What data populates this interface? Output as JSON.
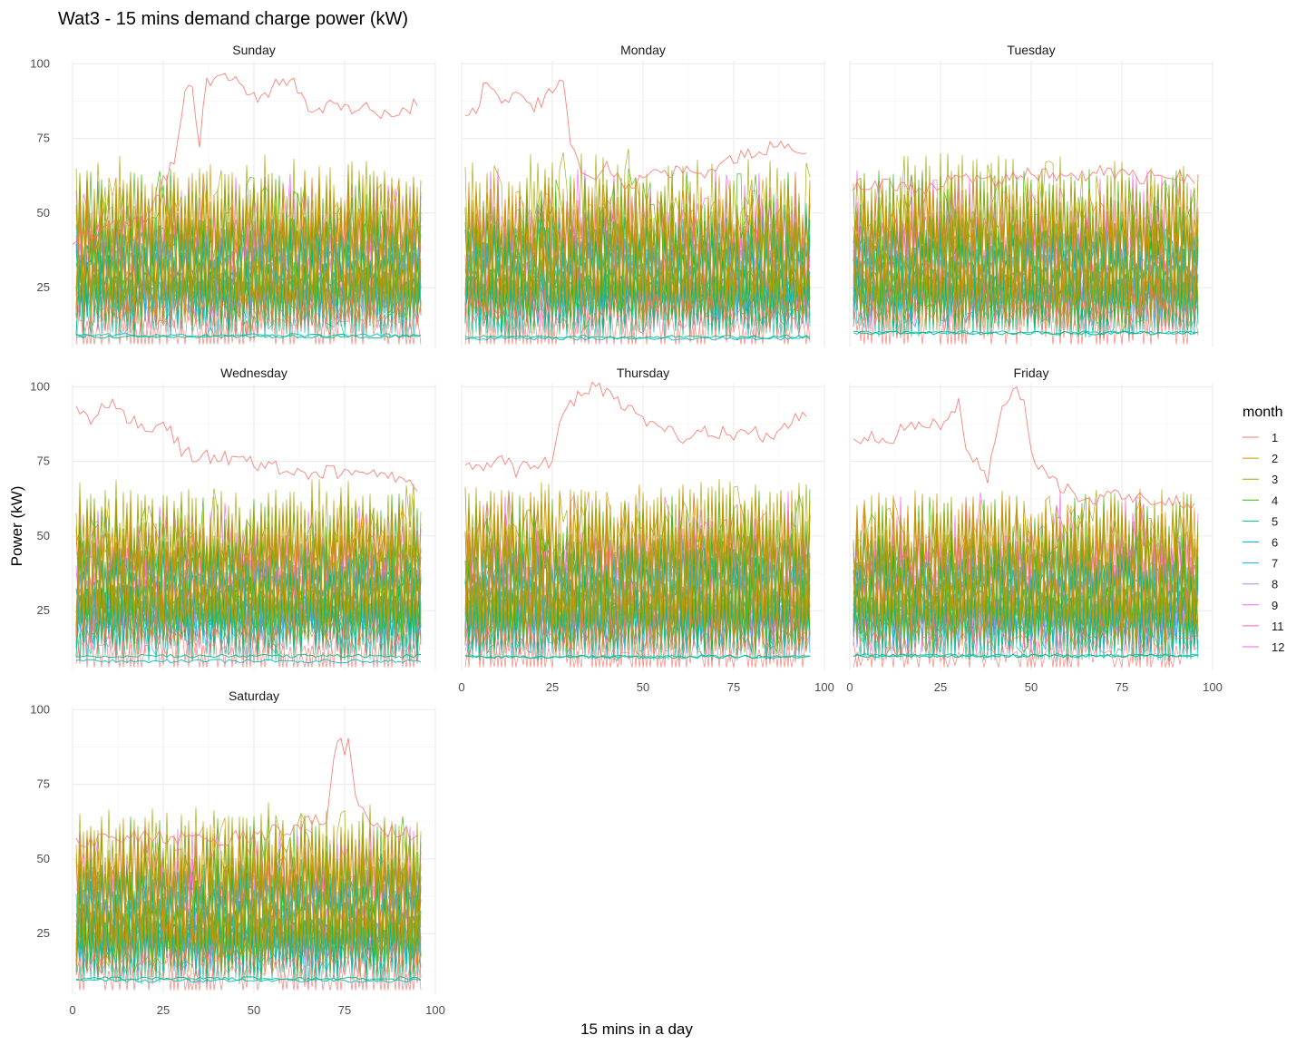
{
  "chart_data": {
    "type": "line",
    "title": "Wat3 - 15 mins demand charge power (kW)",
    "xlabel": "15 mins in a day",
    "ylabel": "Power (kW)",
    "xlim": [
      0,
      100
    ],
    "ylim": [
      5,
      101
    ],
    "x_ticks": [
      "0",
      "25",
      "50",
      "75",
      "100"
    ],
    "y_ticks": [
      "25",
      "50",
      "75",
      "100"
    ],
    "grid": true,
    "legend_position": "right",
    "legend": {
      "title": "month",
      "entries": [
        {
          "label": "1",
          "color": "#F8766D"
        },
        {
          "label": "2",
          "color": "#D89000"
        },
        {
          "label": "3",
          "color": "#A3A500"
        },
        {
          "label": "4",
          "color": "#39B600"
        },
        {
          "label": "5",
          "color": "#00BF7D"
        },
        {
          "label": "6",
          "color": "#00BFC4"
        },
        {
          "label": "7",
          "color": "#00B0F6"
        },
        {
          "label": "8",
          "color": "#9590FF"
        },
        {
          "label": "9",
          "color": "#E76BF3"
        },
        {
          "label": "11",
          "color": "#FF62BC"
        },
        {
          "label": "12",
          "color": "#F763E0"
        }
      ]
    },
    "panels": [
      {
        "day": "Sunday",
        "month1_profile": [
          [
            0,
            42
          ],
          [
            20,
            47
          ],
          [
            25,
            60
          ],
          [
            28,
            68
          ],
          [
            31,
            90
          ],
          [
            33,
            91
          ],
          [
            35,
            73
          ],
          [
            37,
            94
          ],
          [
            40,
            97
          ],
          [
            45,
            96
          ],
          [
            50,
            88
          ],
          [
            55,
            92
          ],
          [
            60,
            96
          ],
          [
            65,
            85
          ],
          [
            70,
            86
          ],
          [
            75,
            84
          ],
          [
            80,
            87
          ],
          [
            85,
            82
          ],
          [
            90,
            85
          ],
          [
            95,
            86
          ]
        ]
      },
      {
        "day": "Monday",
        "month1_profile": [
          [
            1,
            84
          ],
          [
            4,
            85
          ],
          [
            7,
            95
          ],
          [
            10,
            88
          ],
          [
            15,
            90
          ],
          [
            20,
            85
          ],
          [
            25,
            92
          ],
          [
            28,
            95
          ],
          [
            30,
            72
          ],
          [
            35,
            62
          ],
          [
            40,
            66
          ],
          [
            45,
            58
          ],
          [
            50,
            62
          ],
          [
            55,
            63
          ],
          [
            60,
            65
          ],
          [
            65,
            62
          ],
          [
            70,
            65
          ],
          [
            75,
            68
          ],
          [
            80,
            70
          ],
          [
            85,
            72
          ],
          [
            90,
            72
          ],
          [
            95,
            70
          ]
        ]
      },
      {
        "day": "Tuesday",
        "month1_profile": [
          [
            1,
            58
          ],
          [
            10,
            60
          ],
          [
            20,
            58
          ],
          [
            30,
            62
          ],
          [
            40,
            60
          ],
          [
            50,
            63
          ],
          [
            60,
            62
          ],
          [
            70,
            64
          ],
          [
            80,
            62
          ],
          [
            90,
            63
          ],
          [
            95,
            60
          ]
        ]
      },
      {
        "day": "Wednesday",
        "month1_profile": [
          [
            1,
            92
          ],
          [
            5,
            88
          ],
          [
            10,
            95
          ],
          [
            15,
            90
          ],
          [
            20,
            86
          ],
          [
            25,
            88
          ],
          [
            30,
            79
          ],
          [
            35,
            76
          ],
          [
            40,
            77
          ],
          [
            45,
            75
          ],
          [
            50,
            74
          ],
          [
            55,
            73
          ],
          [
            60,
            72
          ],
          [
            65,
            70
          ],
          [
            70,
            72
          ],
          [
            75,
            70
          ],
          [
            80,
            71
          ],
          [
            85,
            69
          ],
          [
            90,
            70
          ],
          [
            95,
            65
          ]
        ]
      },
      {
        "day": "Thursday",
        "month1_profile": [
          [
            1,
            75
          ],
          [
            5,
            73
          ],
          [
            10,
            76
          ],
          [
            15,
            72
          ],
          [
            20,
            75
          ],
          [
            25,
            74
          ],
          [
            28,
            92
          ],
          [
            32,
            96
          ],
          [
            36,
            100
          ],
          [
            40,
            98
          ],
          [
            45,
            94
          ],
          [
            50,
            88
          ],
          [
            55,
            86
          ],
          [
            60,
            83
          ],
          [
            65,
            85
          ],
          [
            70,
            85
          ],
          [
            75,
            84
          ],
          [
            80,
            86
          ],
          [
            85,
            82
          ],
          [
            90,
            88
          ],
          [
            95,
            90
          ]
        ]
      },
      {
        "day": "Friday",
        "month1_profile": [
          [
            1,
            82
          ],
          [
            5,
            84
          ],
          [
            10,
            80
          ],
          [
            15,
            87
          ],
          [
            20,
            88
          ],
          [
            25,
            87
          ],
          [
            28,
            90
          ],
          [
            30,
            97
          ],
          [
            32,
            78
          ],
          [
            35,
            75
          ],
          [
            38,
            70
          ],
          [
            40,
            80
          ],
          [
            42,
            95
          ],
          [
            45,
            98
          ],
          [
            48,
            97
          ],
          [
            50,
            77
          ],
          [
            55,
            70
          ],
          [
            60,
            65
          ],
          [
            65,
            62
          ],
          [
            70,
            63
          ],
          [
            75,
            64
          ],
          [
            80,
            63
          ],
          [
            85,
            62
          ],
          [
            90,
            62
          ],
          [
            95,
            61
          ]
        ]
      },
      {
        "day": "Saturday",
        "month1_profile": [
          [
            1,
            55
          ],
          [
            20,
            58
          ],
          [
            40,
            56
          ],
          [
            60,
            60
          ],
          [
            70,
            64
          ],
          [
            72,
            85
          ],
          [
            73,
            91
          ],
          [
            75,
            87
          ],
          [
            76,
            88
          ],
          [
            78,
            70
          ],
          [
            85,
            60
          ],
          [
            95,
            58
          ]
        ]
      }
    ]
  }
}
